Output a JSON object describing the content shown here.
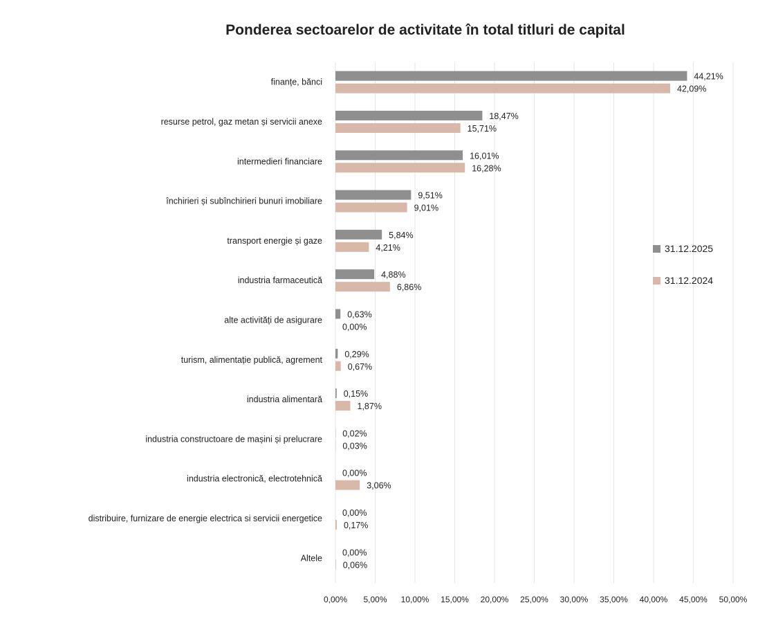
{
  "chart_data": {
    "type": "bar",
    "orientation": "horizontal",
    "title": "Ponderea sectoarelor de activitate în total titluri de capital",
    "xlabel": "",
    "ylabel": "",
    "xlim": [
      0,
      50
    ],
    "grid": true,
    "legend_position": "right",
    "categories": [
      "finanțe, bănci",
      "resurse petrol, gaz metan și servicii anexe",
      "intermedieri financiare",
      "închirieri și subînchirieri bunuri imobiliare",
      "transport energie și gaze",
      "industria farmaceutică",
      "alte activități de asigurare",
      "turism, alimentație publică, agrement",
      "industria alimentară",
      "industria constructoare de mașini și prelucrare",
      "industria electronică, electrotehnică",
      "distribuire, furnizare de energie electrica si servicii energetice",
      "Altele"
    ],
    "x_ticks": [
      "0,00%",
      "5,00%",
      "10,00%",
      "15,00%",
      "20,00%",
      "25,00%",
      "30,00%",
      "35,00%",
      "40,00%",
      "45,00%",
      "50,00%"
    ],
    "series": [
      {
        "name": "31.12.2025",
        "color": "#8f8f8f",
        "values": [
          44.21,
          18.47,
          16.01,
          9.51,
          5.84,
          4.88,
          0.63,
          0.29,
          0.15,
          0.02,
          0.0,
          0.0,
          0.0
        ],
        "labels": [
          "44,21%",
          "18,47%",
          "16,01%",
          "9,51%",
          "5,84%",
          "4,88%",
          "0,63%",
          "0,29%",
          "0,15%",
          "0,02%",
          "0,00%",
          "0,00%",
          "0,00%"
        ]
      },
      {
        "name": "31.12.2024",
        "color": "#d8b8a8",
        "values": [
          42.09,
          15.71,
          16.28,
          9.01,
          4.21,
          6.86,
          0.0,
          0.67,
          1.87,
          0.03,
          3.06,
          0.17,
          0.06
        ],
        "labels": [
          "42,09%",
          "15,71%",
          "16,28%",
          "9,01%",
          "4,21%",
          "6,86%",
          "0,00%",
          "0,67%",
          "1,87%",
          "0,03%",
          "3,06%",
          "0,17%",
          "0,06%"
        ]
      }
    ]
  }
}
